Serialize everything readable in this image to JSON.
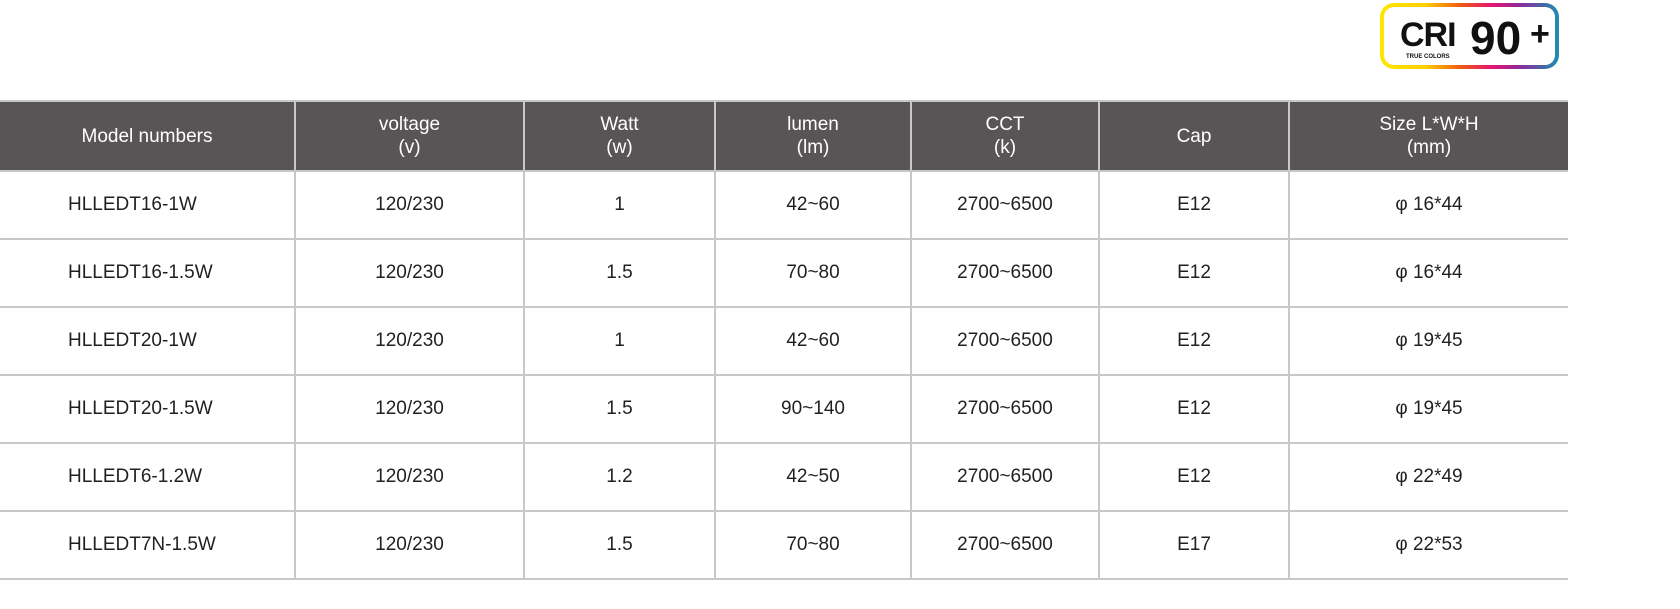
{
  "badge": {
    "cri": "CRI",
    "subtitle": "TRUE COLORS",
    "value": "90",
    "plus": "+"
  },
  "table": {
    "headers": [
      {
        "line1": "Model numbers",
        "line2": ""
      },
      {
        "line1": "voltage",
        "line2": "(v)"
      },
      {
        "line1": "Watt",
        "line2": "(w)"
      },
      {
        "line1": "lumen",
        "line2": "(lm)"
      },
      {
        "line1": "CCT",
        "line2": "(k)"
      },
      {
        "line1": "Cap",
        "line2": ""
      },
      {
        "line1": "Size L*W*H",
        "line2": "(mm)"
      }
    ],
    "rows": [
      [
        "HLLEDT16-1W",
        "120/230",
        "1",
        "42~60",
        "2700~6500",
        "E12",
        "φ 16*44"
      ],
      [
        "HLLEDT16-1.5W",
        "120/230",
        "1.5",
        "70~80",
        "2700~6500",
        "E12",
        "φ 16*44"
      ],
      [
        "HLLEDT20-1W",
        "120/230",
        "1",
        "42~60",
        "2700~6500",
        "E12",
        "φ 19*45"
      ],
      [
        "HLLEDT20-1.5W",
        "120/230",
        "1.5",
        "90~140",
        "2700~6500",
        "E12",
        "φ 19*45"
      ],
      [
        "HLLEDT6-1.2W",
        "120/230",
        "1.2",
        "42~50",
        "2700~6500",
        "E12",
        "φ 22*49"
      ],
      [
        "HLLEDT7N-1.5W",
        "120/230",
        "1.5",
        "70~80",
        "2700~6500",
        "E17",
        "φ 22*53"
      ]
    ]
  }
}
